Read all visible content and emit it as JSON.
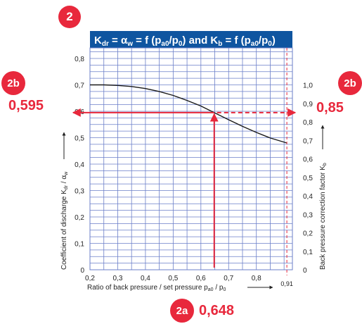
{
  "badges": {
    "main": "2",
    "left": "2b",
    "right": "2b",
    "bottom": "2a"
  },
  "callouts": {
    "left_value": "0,595",
    "right_value": "0,85",
    "bottom_value": "0,648"
  },
  "colors": {
    "header_bg": "#0f55a0",
    "grid": "#6b7fc9",
    "accent": "#e8283c",
    "curve": "#1a1a1a"
  },
  "chart_data": {
    "type": "line",
    "title_parts": {
      "k1": "K",
      "k1_sub": "dr",
      "eq1": " = ",
      "alpha": "α",
      "alpha_sub": "w",
      "eq2": " = f (p",
      "p_sub1": "a0",
      "mid1": "/p",
      "p0_sub1": "0",
      "mid2": ") and K",
      "kb_sub": "b",
      "eq3": " = f (p",
      "p_sub2": "a0",
      "mid3": "/p",
      "p0_sub2": "0",
      "end": ")"
    },
    "x_label": "Ratio of back pressure / set pressure p",
    "x_label_sub1": "a0",
    "x_label_mid": " / p",
    "x_label_sub2": "0",
    "y_left_label": "Coefficient of discharge K",
    "y_left_label_sub1": "dr",
    "y_left_label_mid": " / α",
    "y_left_label_sub2": "w",
    "y_right_label": "Back pressure correction factor K",
    "y_right_label_sub": "b",
    "x_ticks": [
      "0,2",
      "0,3",
      "0,4",
      "0,5",
      "0,6",
      "0,7",
      "0,8"
    ],
    "x_extra_tick": "0,91",
    "y_left_ticks": [
      "0",
      "0,1",
      "0,2",
      "0,3",
      "0,4",
      "0,5",
      "0,6",
      "0,7",
      "0,8"
    ],
    "y_right_ticks": [
      "0",
      "0,1",
      "0,2",
      "0,3",
      "0,4",
      "0,5",
      "0,6",
      "0,7",
      "0,8",
      "0,9",
      "1,0"
    ],
    "xlim": [
      0.2,
      0.93
    ],
    "ylim": [
      0,
      0.84
    ],
    "right_axis_factor": 0.7,
    "curve": {
      "x": [
        0.2,
        0.25,
        0.3,
        0.35,
        0.4,
        0.45,
        0.5,
        0.55,
        0.6,
        0.648,
        0.7,
        0.75,
        0.8,
        0.85,
        0.91
      ],
      "y": [
        0.7,
        0.7,
        0.698,
        0.694,
        0.686,
        0.675,
        0.66,
        0.641,
        0.62,
        0.595,
        0.568,
        0.543,
        0.52,
        0.499,
        0.48
      ]
    },
    "reference_x": 0.91,
    "reading": {
      "x": 0.648,
      "y": 0.595,
      "kb": 0.85
    }
  }
}
